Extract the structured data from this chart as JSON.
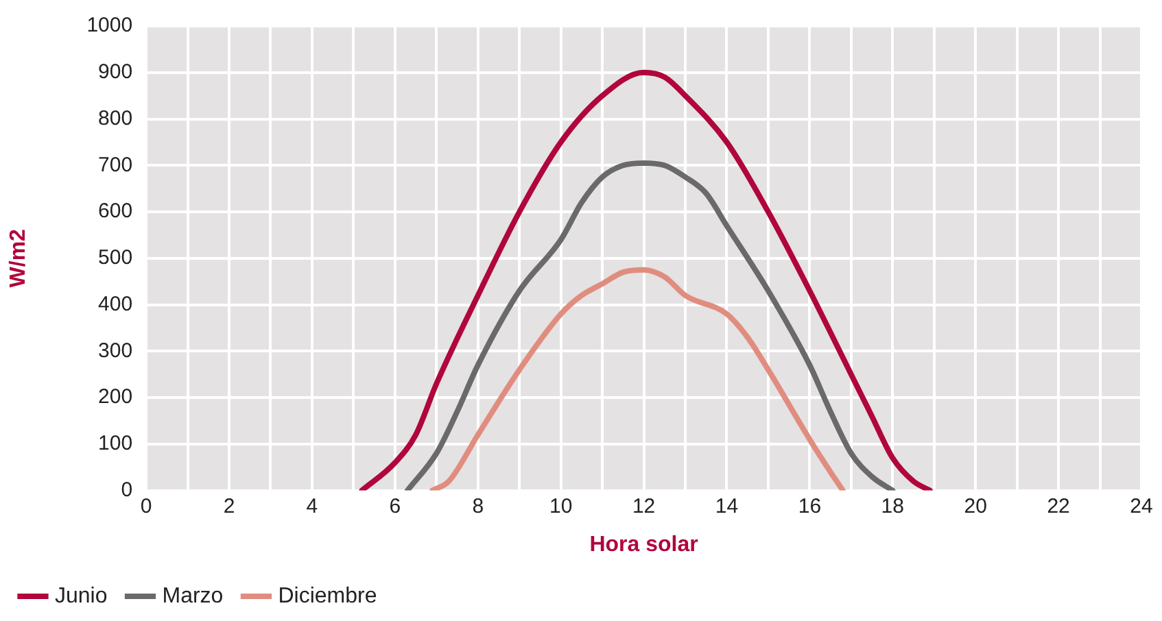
{
  "chart_data": {
    "type": "line",
    "xlabel": "Hora solar",
    "ylabel": "W/m2",
    "xlim": [
      0,
      24
    ],
    "ylim": [
      0,
      1000
    ],
    "xticks": [
      0,
      {
        "value": 1,
        "label": null
      },
      2,
      {
        "value": 3,
        "label": null
      },
      4,
      {
        "value": 5,
        "label": null
      },
      6,
      {
        "value": 7,
        "label": null
      },
      8,
      {
        "value": 9,
        "label": null
      },
      10,
      {
        "value": 11,
        "label": null
      },
      12,
      {
        "value": 13,
        "label": null
      },
      14,
      {
        "value": 15,
        "label": null
      },
      16,
      {
        "value": 17,
        "label": null
      },
      18,
      {
        "value": 19,
        "label": null
      },
      20,
      {
        "value": 21,
        "label": null
      },
      22,
      {
        "value": 23,
        "label": null
      },
      24
    ],
    "yticks": [
      0,
      100,
      200,
      300,
      400,
      500,
      600,
      700,
      800,
      900,
      1000
    ],
    "grid": true,
    "legend": "bottom",
    "marker": "none",
    "line_style": "solid",
    "series": [
      {
        "name": "Junio",
        "color": "#b0063c",
        "x": [
          5.2,
          6,
          6.5,
          7,
          8,
          9,
          10,
          11,
          12,
          12.5,
          13,
          14,
          15,
          16,
          17,
          17.5,
          18,
          18.5,
          18.9
        ],
        "values": [
          0,
          60,
          120,
          230,
          420,
          600,
          750,
          850,
          900,
          890,
          850,
          750,
          600,
          430,
          250,
          160,
          70,
          20,
          0
        ]
      },
      {
        "name": "Marzo",
        "color": "#6b6a6b",
        "x": [
          6.3,
          7,
          7.5,
          8,
          9,
          10,
          10.5,
          11,
          11.5,
          12,
          12.5,
          13,
          13.5,
          14,
          15,
          16,
          16.5,
          17,
          17.5,
          18
        ],
        "values": [
          0,
          80,
          170,
          270,
          430,
          540,
          620,
          675,
          700,
          705,
          700,
          675,
          640,
          570,
          430,
          270,
          170,
          80,
          30,
          0
        ]
      },
      {
        "name": "Diciembre",
        "color": "#e08d7f",
        "x": [
          6.9,
          7.3,
          8,
          9,
          10,
          10.5,
          11,
          11.5,
          12,
          12.5,
          13,
          14,
          14.5,
          15,
          16,
          16.5,
          16.8
        ],
        "values": [
          0,
          20,
          120,
          260,
          380,
          420,
          445,
          470,
          475,
          460,
          420,
          380,
          330,
          260,
          110,
          40,
          0
        ]
      }
    ]
  }
}
